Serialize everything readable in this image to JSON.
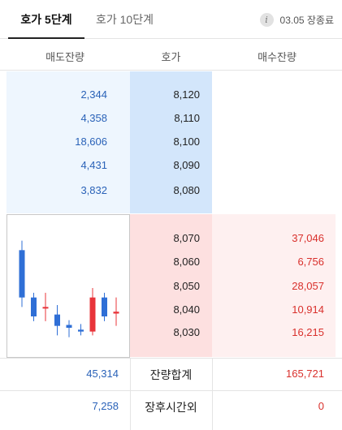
{
  "tabs": {
    "active": "호가 5단계",
    "inactive": "호가 10단계",
    "info_icon": "info-icon",
    "info_glyph": "i",
    "status_text": "03.05 장종료"
  },
  "header": {
    "ask_volume": "매도잔량",
    "price": "호가",
    "bid_volume": "매수잔량"
  },
  "asks": [
    {
      "volume": "2,344",
      "price": "8,120"
    },
    {
      "volume": "4,358",
      "price": "8,110"
    },
    {
      "volume": "18,606",
      "price": "8,100"
    },
    {
      "volume": "4,431",
      "price": "8,090"
    },
    {
      "volume": "3,832",
      "price": "8,080"
    }
  ],
  "bids": [
    {
      "price": "8,070",
      "volume": "37,046"
    },
    {
      "price": "8,060",
      "volume": "6,756"
    },
    {
      "price": "8,050",
      "volume": "28,057"
    },
    {
      "price": "8,040",
      "volume": "10,914"
    },
    {
      "price": "8,030",
      "volume": "16,215"
    }
  ],
  "totals": {
    "ask_total": "45,314",
    "label": "잔량합계",
    "bid_total": "165,721"
  },
  "after_hours": {
    "ask": "7,258",
    "label": "장후시간외",
    "bid": "0"
  },
  "colors": {
    "ask": "#2a62b8",
    "bid": "#d9302c",
    "candle_up": "#e8343a",
    "candle_down": "#2f6fd6"
  },
  "chart_data": {
    "type": "candlestick",
    "candles": [
      {
        "open": 8120,
        "close": 8070,
        "high": 8130,
        "low": 8060
      },
      {
        "open": 8070,
        "close": 8050,
        "high": 8075,
        "low": 8045
      },
      {
        "open": 8060,
        "close": 8060,
        "high": 8075,
        "low": 8045
      },
      {
        "open": 8052,
        "close": 8040,
        "high": 8062,
        "low": 8030
      },
      {
        "open": 8041,
        "close": 8038,
        "high": 8046,
        "low": 8028
      },
      {
        "open": 8036,
        "close": 8034,
        "high": 8042,
        "low": 8030
      },
      {
        "open": 8034,
        "close": 8070,
        "high": 8080,
        "low": 8030
      },
      {
        "open": 8070,
        "close": 8050,
        "high": 8075,
        "low": 8045
      },
      {
        "open": 8053,
        "close": 8055,
        "high": 8070,
        "low": 8040
      }
    ],
    "ylim": [
      8020,
      8140
    ]
  }
}
